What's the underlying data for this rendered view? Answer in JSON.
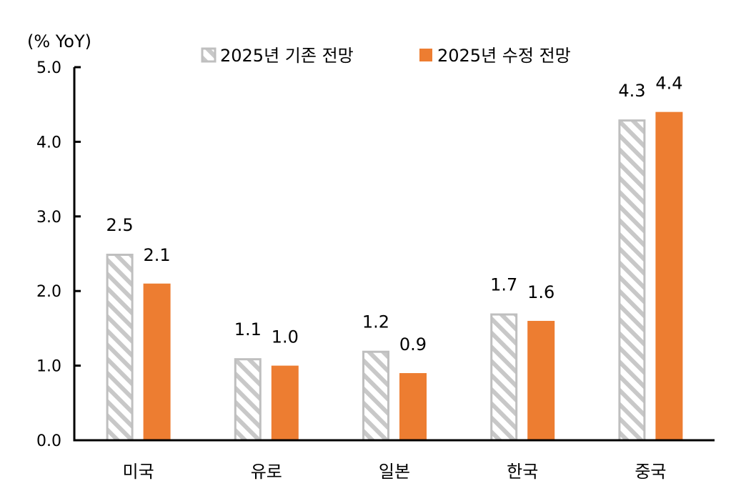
{
  "chart_data": {
    "type": "bar",
    "unit_label": "(% YoY)",
    "categories": [
      "미국",
      "유로",
      "일본",
      "한국",
      "중국"
    ],
    "series": [
      {
        "name": "2025년 기존 전망",
        "values": [
          2.5,
          1.1,
          1.2,
          1.7,
          4.3
        ],
        "labels": [
          "2.5",
          "1.1",
          "1.2",
          "1.7",
          "4.3"
        ],
        "color": "#bfbfbf",
        "style": "hatched"
      },
      {
        "name": "2025년 수정 전망",
        "values": [
          2.1,
          1.0,
          0.9,
          1.6,
          4.4
        ],
        "labels": [
          "2.1",
          "1.0",
          "0.9",
          "1.6",
          "4.4"
        ],
        "color": "#ed7d31",
        "style": "solid"
      }
    ],
    "yticks": [
      "0.0",
      "1.0",
      "2.0",
      "3.0",
      "4.0",
      "5.0"
    ],
    "ylim": [
      0,
      5
    ],
    "grid": false,
    "legend_position": "top"
  }
}
